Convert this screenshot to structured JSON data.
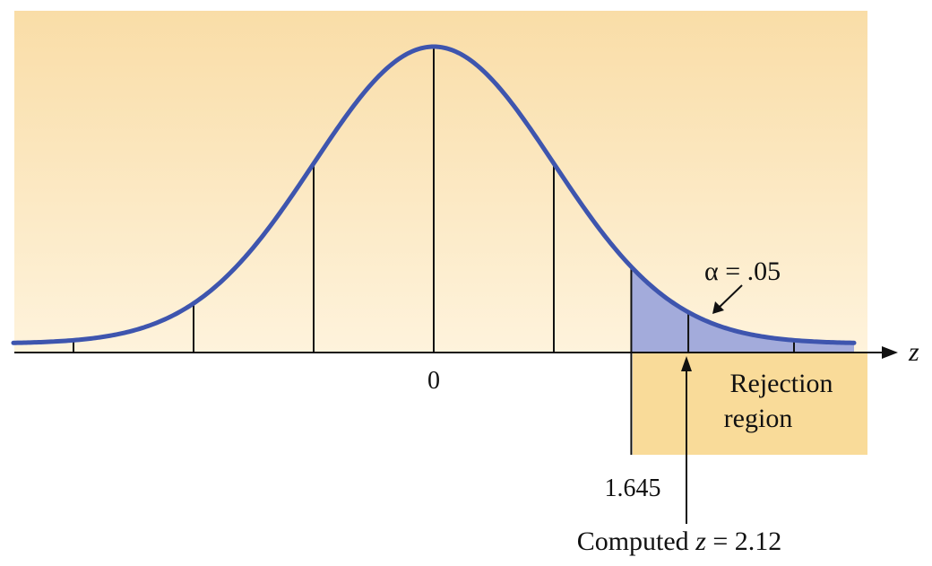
{
  "chart_data": {
    "type": "area",
    "distribution": "standard normal",
    "x_axis_label": "z",
    "xlim": [
      -3.5,
      3.5
    ],
    "center_tick_label": "0",
    "critical_value": 1.645,
    "critical_value_label": "1.645",
    "computed_z": 2.12,
    "computed_label": "Computed z = 2.12",
    "computed_label_prefix": "Computed",
    "computed_label_var": "z",
    "computed_label_suffix": "= 2.12",
    "alpha_label": "α = .05",
    "rejection_label_line1": "Rejection",
    "rejection_label_line2": "region",
    "vertical_lines_at": [
      -2,
      -1,
      0,
      1,
      2.12
    ],
    "tick_marks_at": [
      -3,
      3
    ],
    "colors": {
      "background_top": "#F9DDA7",
      "background_bottom": "#FEF3DC",
      "curve": "#3E55AE",
      "shaded_tail": "#A3ABDB",
      "rejection_box": "#F9DB99"
    }
  }
}
